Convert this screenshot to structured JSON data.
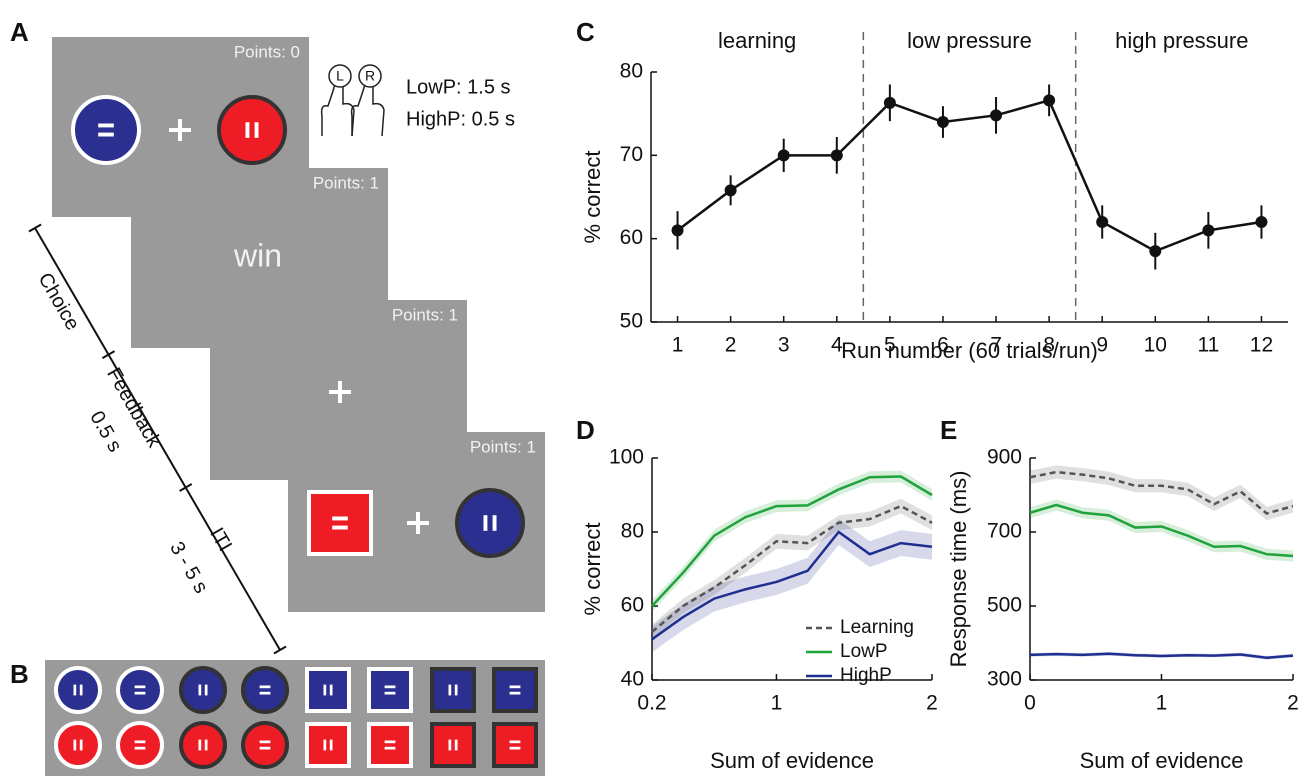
{
  "panel_labels": [
    "A",
    "B",
    "C",
    "D",
    "E"
  ],
  "task_diagram": {
    "screens": [
      {
        "points": "Points: 0"
      },
      {
        "points": "Points: 1"
      },
      {
        "points": "Points: 1"
      },
      {
        "points": "Points: 1"
      }
    ],
    "feedback": "win",
    "response_keys": [
      "L",
      "R"
    ],
    "timing": [
      "LowP: 1.5 s",
      "HighP: 0.5 s"
    ],
    "timeline": [
      {
        "label": "Choice"
      },
      {
        "label": "Feedback",
        "duration": "0.5 s"
      },
      {
        "label": "ITI",
        "duration": "3 - 5 s"
      }
    ]
  },
  "chart_data": [
    {
      "type": "line",
      "x_label": "Run number (60 trials/run)",
      "y_label": "% correct",
      "annotations": [
        "learning",
        "low pressure",
        "high pressure"
      ],
      "vlines": [
        4.5,
        8.5
      ],
      "x": [
        1,
        2,
        3,
        4,
        5,
        6,
        7,
        8,
        9,
        10,
        11,
        12
      ],
      "values": [
        61,
        65.8,
        70,
        70,
        76.3,
        74,
        74.8,
        76.6,
        62,
        58.5,
        61,
        62
      ],
      "errors": [
        2.3,
        1.8,
        2.0,
        2.2,
        2.2,
        1.9,
        2.2,
        1.9,
        2.0,
        2.2,
        2.2,
        2.0
      ],
      "color": "#111111",
      "xlim": [
        0.5,
        12.5
      ],
      "xticks": [
        1,
        2,
        3,
        4,
        5,
        6,
        7,
        8,
        9,
        10,
        11,
        12
      ],
      "ylim": [
        50,
        80
      ],
      "yticks": [
        50,
        60,
        70,
        80
      ]
    },
    {
      "type": "line",
      "x_label": "Sum of evidence",
      "y_label": "% correct",
      "x": [
        0.2,
        0.4,
        0.6,
        0.8,
        1.0,
        1.2,
        1.4,
        1.6,
        1.8,
        2.0
      ],
      "series": [
        {
          "name": "Learning",
          "color": "#555555",
          "dashed": true,
          "error": 2,
          "values": [
            53,
            60,
            65,
            71,
            77.5,
            77,
            82.5,
            83.5,
            87,
            82.5
          ]
        },
        {
          "name": "LowP",
          "color": "#1fa33a",
          "error": 1.6,
          "values": [
            60,
            69,
            79,
            84,
            87,
            87.2,
            91.5,
            94.8,
            95,
            90
          ]
        },
        {
          "name": "HighP",
          "color": "#1f2f8f",
          "error": 3.5,
          "values": [
            51,
            57,
            62,
            64.5,
            66.5,
            69.5,
            80,
            74,
            77,
            76
          ]
        }
      ],
      "legend": "lower right",
      "xlim": [
        0.2,
        2
      ],
      "xticks": [
        0.2,
        1,
        2
      ],
      "ylim": [
        40,
        100
      ],
      "yticks": [
        40,
        60,
        80,
        100
      ]
    },
    {
      "type": "line",
      "x_label": "Sum of evidence",
      "y_label": "Response time (ms)",
      "x": [
        0,
        0.2,
        0.4,
        0.6,
        0.8,
        1.0,
        1.2,
        1.4,
        1.6,
        1.8,
        2.0
      ],
      "series": [
        {
          "name": "Learning",
          "color": "#555555",
          "dashed": true,
          "error": 18,
          "values": [
            848,
            862,
            855,
            845,
            825,
            825,
            815,
            775,
            810,
            750,
            770
          ]
        },
        {
          "name": "LowP",
          "color": "#1fa33a",
          "error": 15,
          "values": [
            752,
            773,
            752,
            745,
            712,
            715,
            690,
            660,
            662,
            640,
            635
          ]
        },
        {
          "name": "HighP",
          "color": "#1f2f8f",
          "error": 5,
          "values": [
            368,
            370,
            368,
            371,
            367,
            365,
            367,
            366,
            369,
            360,
            366
          ]
        }
      ],
      "xlim": [
        0,
        2
      ],
      "xticks": [
        0,
        1,
        2
      ],
      "ylim": [
        300,
        900
      ],
      "yticks": [
        300,
        500,
        700,
        900
      ]
    }
  ]
}
